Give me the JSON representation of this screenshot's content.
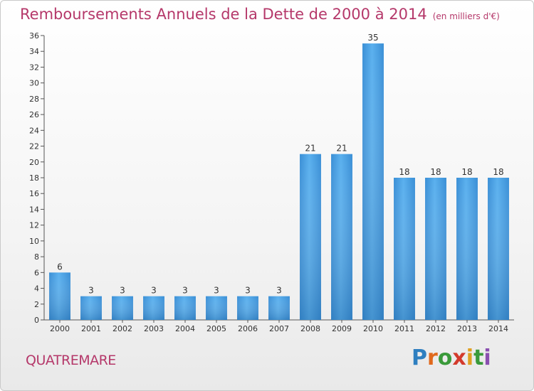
{
  "chart_data": {
    "type": "bar",
    "title": "Remboursements Annuels de la Dette de 2000 à 2014",
    "unit_label": "(en milliers d'€)",
    "categories": [
      "2000",
      "2001",
      "2002",
      "2003",
      "2004",
      "2005",
      "2006",
      "2007",
      "2008",
      "2009",
      "2010",
      "2011",
      "2012",
      "2013",
      "2014"
    ],
    "values": [
      6,
      3,
      3,
      3,
      3,
      3,
      3,
      3,
      21,
      21,
      35,
      18,
      18,
      18,
      18
    ],
    "ylim": [
      0,
      36
    ],
    "yticks": [
      0,
      2,
      4,
      6,
      8,
      10,
      12,
      14,
      16,
      18,
      20,
      22,
      24,
      26,
      28,
      30,
      32,
      34,
      36
    ],
    "grid": false,
    "bar_color": "#4a9fe0"
  },
  "commune": "QUATREMARE",
  "logo": {
    "letters": [
      "P",
      "r",
      "o",
      "x",
      "i",
      "t",
      "i"
    ],
    "colors": [
      "#2e7fc0",
      "#e0691d",
      "#3a9a3a",
      "#d33a2c",
      "#e0a020",
      "#3a9a3a",
      "#8a4fb0"
    ]
  }
}
